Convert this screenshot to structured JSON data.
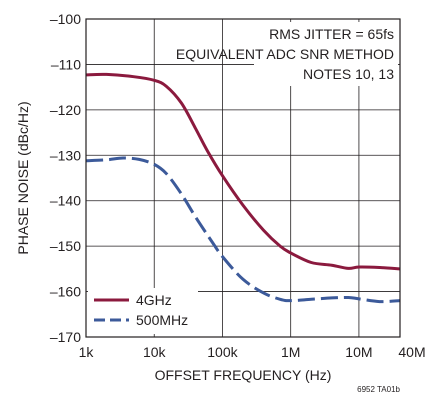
{
  "chart_data": {
    "type": "line",
    "xlabel": "OFFSET FREQUENCY (Hz)",
    "ylabel": "PHASE NOISE (dBc/Hz)",
    "x_scale": "log",
    "xlim": [
      1000,
      40000000
    ],
    "ylim": [
      -170,
      -100
    ],
    "x_ticks": [
      {
        "value": 1000,
        "label": "1k"
      },
      {
        "value": 10000,
        "label": "10k"
      },
      {
        "value": 100000,
        "label": "100k"
      },
      {
        "value": 1000000,
        "label": "1M"
      },
      {
        "value": 10000000,
        "label": "10M"
      },
      {
        "value": 40000000,
        "label": "40M"
      }
    ],
    "y_ticks": [
      {
        "value": -100,
        "label": "–100"
      },
      {
        "value": -110,
        "label": "–110"
      },
      {
        "value": -120,
        "label": "–120"
      },
      {
        "value": -130,
        "label": "–130"
      },
      {
        "value": -140,
        "label": "–140"
      },
      {
        "value": -150,
        "label": "–150"
      },
      {
        "value": -160,
        "label": "–160"
      },
      {
        "value": -170,
        "label": "–170"
      }
    ],
    "grid": true,
    "notes": [
      "RMS JITTER = 65fs",
      "EQUIVALENT ADC SNR METHOD",
      "NOTES 10, 13"
    ],
    "legend_position": "bottom-left",
    "series": [
      {
        "name": "4GHz",
        "color": "#8b1a3e",
        "dash": "solid",
        "x": [
          1000,
          2000,
          5000,
          10000,
          15000,
          25000,
          40000,
          60000,
          100000,
          200000,
          400000,
          700000,
          1000000,
          2000000,
          4000000,
          7000000,
          10000000,
          20000000,
          40000000
        ],
        "y": [
          -112.3,
          -112.2,
          -112.7,
          -113.5,
          -114.8,
          -118.5,
          -124,
          -129,
          -134.5,
          -141,
          -146.5,
          -150,
          -151.5,
          -153.6,
          -154.2,
          -154.9,
          -154.6,
          -154.7,
          -155
        ]
      },
      {
        "name": "500MHz",
        "color": "#3c5a9a",
        "dash": "dashed",
        "x": [
          1000,
          2000,
          3500,
          6000,
          10000,
          15000,
          25000,
          40000,
          70000,
          100000,
          200000,
          400000,
          700000,
          1000000,
          2000000,
          4000000,
          7000000,
          10000000,
          20000000,
          40000000
        ],
        "y": [
          -131.2,
          -131,
          -130.6,
          -130.9,
          -132,
          -134,
          -138.5,
          -143.5,
          -149,
          -152.3,
          -157.3,
          -160.3,
          -161.7,
          -162,
          -161.7,
          -161.4,
          -161.3,
          -161.6,
          -162.2,
          -162
        ]
      }
    ]
  },
  "figure_id": "6952 TA01b"
}
